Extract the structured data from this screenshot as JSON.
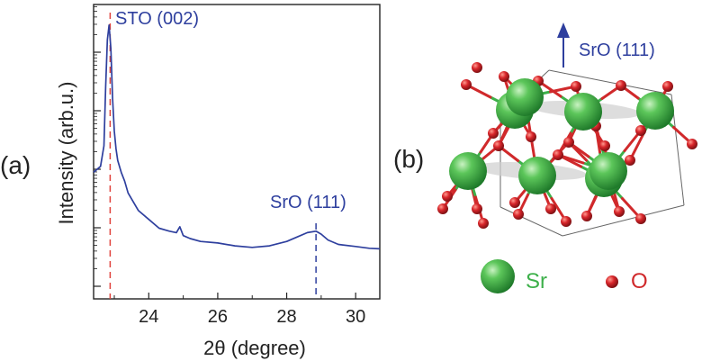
{
  "panel_a": {
    "label": "(a)",
    "chart_data": {
      "type": "line",
      "title": "",
      "xlabel": "2θ (degree)",
      "ylabel": "Intensity (arb.u.)",
      "xlim": [
        22.4,
        30.7
      ],
      "y_scale": "log",
      "y_tick_labels_shown": false,
      "x_ticks": [
        24,
        26,
        28,
        30
      ],
      "x_tick_labels": [
        "24",
        "26",
        "28",
        "30"
      ],
      "grid": false,
      "legend": "none",
      "line_color": "#2e3f9e",
      "series": [
        {
          "x": [
            22.4,
            22.6,
            22.7,
            22.75,
            22.8,
            22.85,
            22.9,
            22.95,
            23.0,
            23.05,
            23.1,
            23.2,
            23.3,
            23.4,
            23.5,
            23.7,
            24.0,
            24.3,
            24.6,
            24.8,
            24.9,
            25.0,
            25.2,
            25.5,
            26.0,
            26.5,
            27.0,
            27.5,
            28.0,
            28.3,
            28.6,
            28.85,
            29.0,
            29.2,
            29.5,
            30.0,
            30.4,
            30.7
          ],
          "y": [
            0.43,
            0.45,
            0.52,
            0.72,
            0.88,
            0.93,
            0.85,
            0.68,
            0.57,
            0.51,
            0.47,
            0.43,
            0.4,
            0.36,
            0.34,
            0.3,
            0.27,
            0.24,
            0.23,
            0.225,
            0.245,
            0.215,
            0.205,
            0.195,
            0.19,
            0.18,
            0.175,
            0.18,
            0.195,
            0.21,
            0.225,
            0.23,
            0.22,
            0.2,
            0.185,
            0.178,
            0.172,
            0.17
          ]
        }
      ],
      "annotations": [
        {
          "text": "STO (002)",
          "x": 22.88,
          "line_color": "#e0433c",
          "line_style": "dashed"
        },
        {
          "text": "SrO (111)",
          "x": 28.85,
          "line_color": "#2e3f9e",
          "line_style": "dashed"
        }
      ]
    }
  },
  "panel_b": {
    "label": "(b)",
    "direction_label": "SrO (111)",
    "legend": [
      {
        "text": "Sr",
        "color": "#3db04a"
      },
      {
        "text": "O",
        "color": "#d0292b"
      }
    ]
  }
}
